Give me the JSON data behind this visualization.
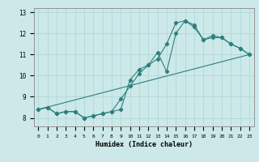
{
  "xlabel": "Humidex (Indice chaleur)",
  "bg_color": "#cce8e8",
  "grid_color": "#aad4d4",
  "line_color": "#2e7f7f",
  "xlim": [
    -0.5,
    23.5
  ],
  "ylim": [
    7.6,
    13.2
  ],
  "yticks": [
    8,
    9,
    10,
    11,
    12,
    13
  ],
  "xticks": [
    0,
    1,
    2,
    3,
    4,
    5,
    6,
    7,
    8,
    9,
    10,
    11,
    12,
    13,
    14,
    15,
    16,
    17,
    18,
    19,
    20,
    21,
    22,
    23
  ],
  "line1_x": [
    0,
    1,
    2,
    3,
    4,
    5,
    6,
    7,
    8,
    9,
    10,
    11,
    12,
    13,
    14,
    15,
    16,
    17,
    18,
    19,
    20,
    21,
    22,
    23
  ],
  "line1_y": [
    8.4,
    8.5,
    8.2,
    8.3,
    8.3,
    8.0,
    8.1,
    8.2,
    8.3,
    8.4,
    9.8,
    10.3,
    10.5,
    11.1,
    10.2,
    12.0,
    12.6,
    12.4,
    11.7,
    11.9,
    11.8,
    11.5,
    11.3,
    11.0
  ],
  "line2_x": [
    0,
    1,
    2,
    3,
    4,
    5,
    6,
    7,
    8,
    9,
    10,
    11,
    12,
    13,
    14,
    15,
    16,
    17,
    18,
    19,
    20,
    21,
    22,
    23
  ],
  "line2_y": [
    8.4,
    8.5,
    8.2,
    8.3,
    8.3,
    8.0,
    8.1,
    8.2,
    8.3,
    8.9,
    9.5,
    10.1,
    10.5,
    10.8,
    11.5,
    12.5,
    12.6,
    12.3,
    11.7,
    11.8,
    11.8,
    11.5,
    11.3,
    11.0
  ],
  "line3_x": [
    0,
    23
  ],
  "line3_y": [
    8.4,
    11.0
  ]
}
